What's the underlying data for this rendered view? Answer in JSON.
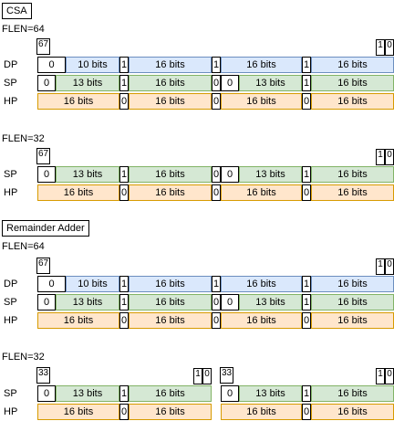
{
  "sections": [
    {
      "title": "CSA"
    },
    {
      "title": "Remainder Adder"
    }
  ],
  "blocks": [
    {
      "flen": "FLEN=64",
      "left_bits": "67",
      "right_bits": [
        "1",
        "0"
      ],
      "rows": [
        {
          "label": "DP",
          "type": "dp",
          "cells": [
            "0",
            "10 bits",
            "1",
            "16 bits",
            "1",
            "16 bits",
            "1",
            "16 bits"
          ]
        },
        {
          "label": "SP",
          "type": "sp",
          "cells": [
            "0",
            "13 bits",
            "1",
            "16 bits",
            "0",
            "0",
            "13 bits",
            "1",
            "16 bits"
          ]
        },
        {
          "label": "HP",
          "type": "hp",
          "cells": [
            "16 bits",
            "0",
            "16 bits",
            "0",
            "16 bits",
            "0",
            "16 bits"
          ]
        }
      ]
    },
    {
      "flen": "FLEN=32",
      "left_bits": "67",
      "right_bits": [
        "1",
        "0"
      ],
      "rows": [
        {
          "label": "SP",
          "type": "sp",
          "cells": [
            "0",
            "13 bits",
            "1",
            "16 bits",
            "0",
            "0",
            "13 bits",
            "1",
            "16 bits"
          ]
        },
        {
          "label": "HP",
          "type": "hp",
          "cells": [
            "16 bits",
            "0",
            "16 bits",
            "0",
            "16 bits",
            "0",
            "16 bits"
          ]
        }
      ]
    },
    {
      "flen": "FLEN=64",
      "left_bits": "67",
      "right_bits": [
        "1",
        "0"
      ],
      "rows": [
        {
          "label": "DP",
          "type": "dp",
          "cells": [
            "0",
            "10 bits",
            "1",
            "16 bits",
            "1",
            "16 bits",
            "1",
            "16 bits"
          ]
        },
        {
          "label": "SP",
          "type": "sp",
          "cells": [
            "0",
            "13 bits",
            "1",
            "16 bits",
            "0",
            "0",
            "13 bits",
            "1",
            "16 bits"
          ]
        },
        {
          "label": "HP",
          "type": "hp",
          "cells": [
            "16 bits",
            "0",
            "16 bits",
            "0",
            "16 bits",
            "0",
            "16 bits"
          ]
        }
      ]
    },
    {
      "flen": "FLEN=32",
      "halves": [
        {
          "left_bits": "33",
          "right_bits": [
            "1",
            "0"
          ]
        },
        {
          "left_bits": "33",
          "right_bits": [
            "1",
            "0"
          ]
        }
      ],
      "rows": [
        {
          "label": "SP",
          "type": "sp-half",
          "cells": [
            "0",
            "13 bits",
            "1",
            "16 bits",
            "0",
            "13 bits",
            "1",
            "16 bits"
          ]
        },
        {
          "label": "HP",
          "type": "hp-half",
          "cells": [
            "16 bits",
            "0",
            "16 bits",
            "16 bits",
            "0",
            "16 bits"
          ]
        }
      ]
    }
  ],
  "colors": {
    "dp_fill": "#dae8fc",
    "dp_stroke": "#6c8ebf",
    "sp_fill": "#d5e8d4",
    "sp_stroke": "#82b366",
    "hp_fill": "#ffe6cc",
    "hp_stroke": "#d79b00",
    "mini_fill": "#ffffff",
    "mini_stroke": "#000000"
  }
}
